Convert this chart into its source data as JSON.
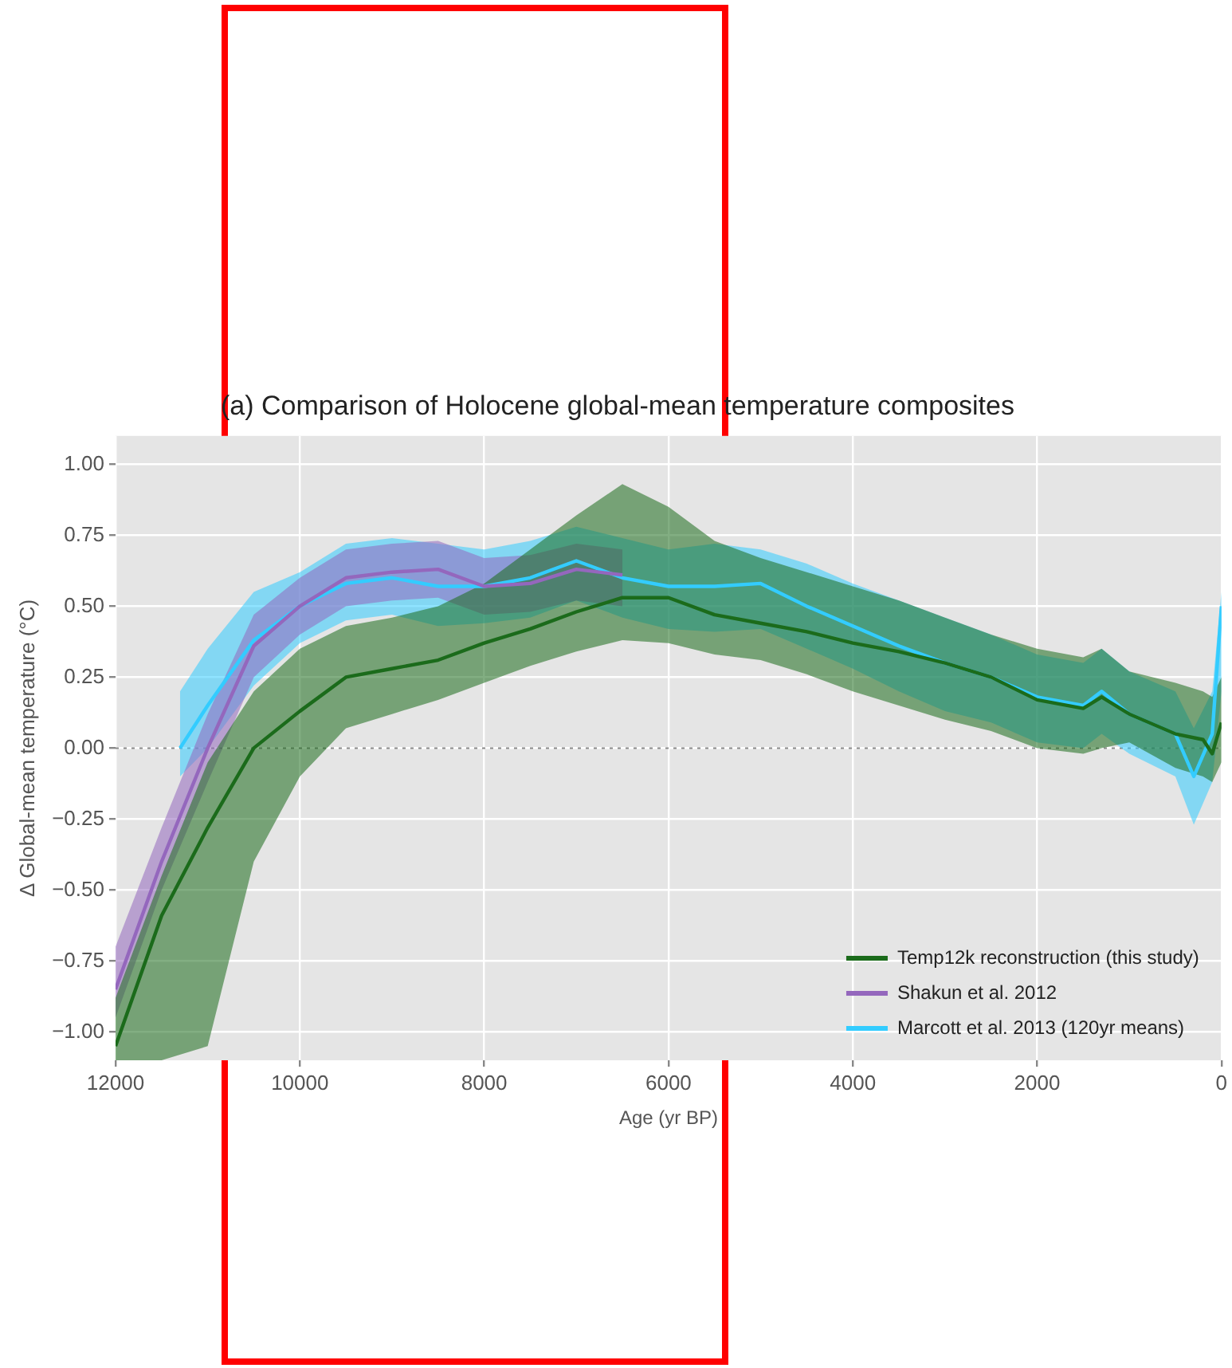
{
  "chart_data": {
    "type": "line",
    "title": "(a) Comparison of Holocene global-mean temperature composites",
    "xlabel": "Age (yr BP)",
    "ylabel": "Δ Global-mean temperature (°C)",
    "series": [
      {
        "name": "Temp12k reconstruction (this study)",
        "color": "#1b6b1b",
        "x": [
          12000,
          11500,
          11000,
          10500,
          10000,
          9500,
          9000,
          8500,
          8000,
          7500,
          7000,
          6500,
          6000,
          5500,
          5000,
          4500,
          4000,
          3500,
          3000,
          2500,
          2000,
          1500,
          1300,
          1000,
          500,
          200,
          100,
          0
        ],
        "values": [
          -1.05,
          -0.59,
          -0.28,
          0.0,
          0.13,
          0.25,
          0.28,
          0.31,
          0.37,
          0.42,
          0.48,
          0.53,
          0.53,
          0.47,
          0.44,
          0.41,
          0.37,
          0.34,
          0.3,
          0.25,
          0.17,
          0.14,
          0.18,
          0.12,
          0.05,
          0.03,
          -0.02,
          0.09
        ],
        "lower": [
          -1.1,
          -1.1,
          -1.05,
          -0.4,
          -0.1,
          0.07,
          0.12,
          0.17,
          0.23,
          0.29,
          0.34,
          0.38,
          0.37,
          0.33,
          0.31,
          0.26,
          0.2,
          0.15,
          0.1,
          0.06,
          0.0,
          -0.02,
          0.0,
          0.02,
          -0.07,
          -0.1,
          -0.12,
          -0.05
        ],
        "upper": [
          -0.88,
          -0.45,
          -0.05,
          0.2,
          0.35,
          0.43,
          0.46,
          0.5,
          0.58,
          0.7,
          0.82,
          0.93,
          0.85,
          0.73,
          0.67,
          0.62,
          0.57,
          0.52,
          0.46,
          0.4,
          0.35,
          0.32,
          0.35,
          0.27,
          0.23,
          0.2,
          0.18,
          0.25
        ]
      },
      {
        "name": "Shakun et al. 2012",
        "color": "#9467bd",
        "x": [
          12000,
          11500,
          11000,
          10500,
          10000,
          9500,
          9000,
          8500,
          8000,
          7500,
          7000,
          6500
        ],
        "values": [
          -0.85,
          -0.4,
          0.0,
          0.36,
          0.5,
          0.6,
          0.62,
          0.63,
          0.57,
          0.58,
          0.63,
          0.61
        ],
        "lower": [
          -0.95,
          -0.5,
          -0.12,
          0.25,
          0.4,
          0.5,
          0.52,
          0.53,
          0.47,
          0.48,
          0.52,
          0.5
        ],
        "upper": [
          -0.7,
          -0.28,
          0.12,
          0.47,
          0.6,
          0.7,
          0.72,
          0.73,
          0.67,
          0.68,
          0.72,
          0.7
        ]
      },
      {
        "name": "Marcott et al. 2013 (120yr means)",
        "color": "#33ccff",
        "x": [
          11300,
          11000,
          10500,
          10000,
          9500,
          9000,
          8500,
          8000,
          7500,
          7000,
          6500,
          6000,
          5500,
          5000,
          4500,
          4000,
          3500,
          3000,
          2500,
          2000,
          1500,
          1300,
          1000,
          500,
          300,
          100,
          0
        ],
        "values": [
          0.0,
          0.15,
          0.38,
          0.5,
          0.58,
          0.6,
          0.57,
          0.57,
          0.6,
          0.66,
          0.6,
          0.57,
          0.57,
          0.58,
          0.5,
          0.43,
          0.36,
          0.3,
          0.25,
          0.18,
          0.15,
          0.2,
          0.12,
          0.05,
          -0.1,
          0.05,
          0.5
        ],
        "lower": [
          -0.1,
          0.0,
          0.22,
          0.37,
          0.45,
          0.47,
          0.43,
          0.44,
          0.46,
          0.52,
          0.46,
          0.42,
          0.41,
          0.42,
          0.35,
          0.28,
          0.2,
          0.13,
          0.09,
          0.02,
          0.0,
          0.05,
          -0.02,
          -0.1,
          -0.27,
          -0.12,
          0.2
        ],
        "upper": [
          0.2,
          0.35,
          0.55,
          0.62,
          0.72,
          0.74,
          0.72,
          0.7,
          0.73,
          0.78,
          0.74,
          0.7,
          0.72,
          0.7,
          0.65,
          0.58,
          0.52,
          0.46,
          0.4,
          0.33,
          0.3,
          0.35,
          0.27,
          0.2,
          0.07,
          0.2,
          0.55
        ]
      }
    ],
    "xlim": [
      12000,
      0
    ],
    "xticks": [
      12000,
      10000,
      8000,
      6000,
      4000,
      2000,
      0
    ],
    "ylim": [
      -1.1,
      1.1
    ],
    "yticks": [
      {
        "value": -1,
        "label": "−1.00"
      },
      {
        "value": -0.75,
        "label": "−0.75"
      },
      {
        "value": -0.5,
        "label": "−0.50"
      },
      {
        "value": -0.25,
        "label": "−0.25"
      },
      {
        "value": 0,
        "label": "0.00"
      },
      {
        "value": 0.25,
        "label": "0.25"
      },
      {
        "value": 0.5,
        "label": "0.50"
      },
      {
        "value": 0.75,
        "label": "0.75"
      },
      {
        "value": 1,
        "label": "1.00"
      }
    ],
    "ref_lines": [
      {
        "axis": "y",
        "value": 0,
        "color": "#888888",
        "line_style": "dotted"
      }
    ],
    "grid": true,
    "legend": "bottom right",
    "marker": "none",
    "line_style": "solid"
  }
}
